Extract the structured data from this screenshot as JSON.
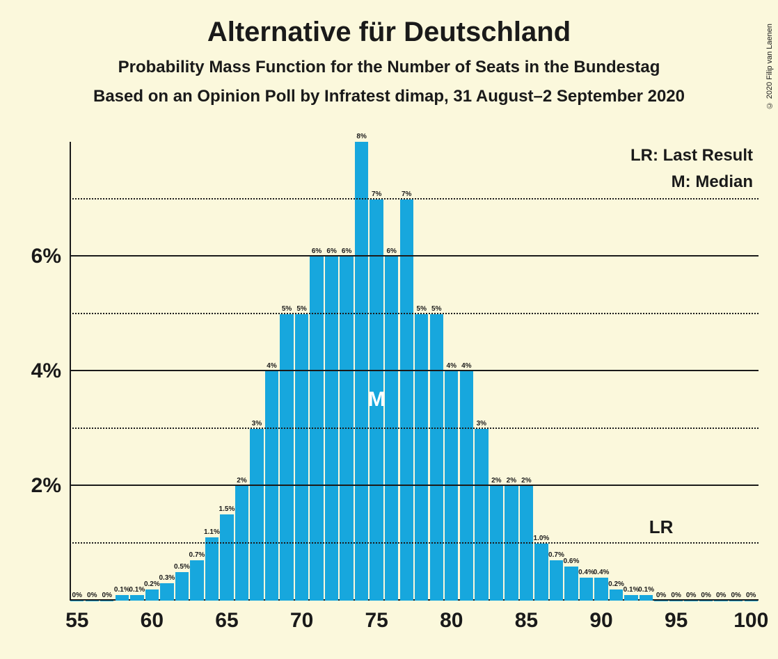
{
  "title": "Alternative für Deutschland",
  "subtitle1": "Probability Mass Function for the Number of Seats in the Bundestag",
  "subtitle2": "Based on an Opinion Poll by Infratest dimap, 31 August–2 September 2020",
  "copyright": "© 2020 Filip van Laenen",
  "legend": {
    "lr": "LR: Last Result",
    "m": "M: Median",
    "fontsize": 24
  },
  "chart": {
    "type": "bar",
    "background_color": "#fbf8dc",
    "bar_color": "#17a7dd",
    "text_color": "#1a1a1a",
    "grid_solid_color": "#1a1a1a",
    "grid_dotted_color": "#1a1a1a",
    "title_fontsize": 40,
    "subtitle_fontsize": 24,
    "axis_label_fontsize": 30,
    "bar_label_fontsize": 10,
    "x": {
      "min": 55,
      "max": 100,
      "tick_step": 5
    },
    "y": {
      "min": 0,
      "max": 8,
      "major_ticks": [
        2,
        4,
        6
      ],
      "minor_ticks": [
        1,
        3,
        5,
        7
      ]
    },
    "median_seat": 75,
    "lr_seat": 94,
    "bars": [
      {
        "seat": 55,
        "pct": 0,
        "label": "0%"
      },
      {
        "seat": 56,
        "pct": 0,
        "label": "0%"
      },
      {
        "seat": 57,
        "pct": 0,
        "label": "0%"
      },
      {
        "seat": 58,
        "pct": 0.1,
        "label": "0.1%"
      },
      {
        "seat": 59,
        "pct": 0.1,
        "label": "0.1%"
      },
      {
        "seat": 60,
        "pct": 0.2,
        "label": "0.2%"
      },
      {
        "seat": 61,
        "pct": 0.3,
        "label": "0.3%"
      },
      {
        "seat": 62,
        "pct": 0.5,
        "label": "0.5%"
      },
      {
        "seat": 63,
        "pct": 0.7,
        "label": "0.7%"
      },
      {
        "seat": 64,
        "pct": 1.1,
        "label": "1.1%"
      },
      {
        "seat": 65,
        "pct": 1.5,
        "label": "1.5%"
      },
      {
        "seat": 66,
        "pct": 2,
        "label": "2%"
      },
      {
        "seat": 67,
        "pct": 3,
        "label": "3%"
      },
      {
        "seat": 68,
        "pct": 4,
        "label": "4%"
      },
      {
        "seat": 69,
        "pct": 5,
        "label": "5%"
      },
      {
        "seat": 70,
        "pct": 5,
        "label": "5%"
      },
      {
        "seat": 71,
        "pct": 6,
        "label": "6%"
      },
      {
        "seat": 72,
        "pct": 6,
        "label": "6%"
      },
      {
        "seat": 73,
        "pct": 6,
        "label": "6%"
      },
      {
        "seat": 74,
        "pct": 8,
        "label": "8%"
      },
      {
        "seat": 75,
        "pct": 7,
        "label": "7%"
      },
      {
        "seat": 76,
        "pct": 6,
        "label": "6%"
      },
      {
        "seat": 77,
        "pct": 7,
        "label": "7%"
      },
      {
        "seat": 78,
        "pct": 5,
        "label": "5%"
      },
      {
        "seat": 79,
        "pct": 5,
        "label": "5%"
      },
      {
        "seat": 80,
        "pct": 4,
        "label": "4%"
      },
      {
        "seat": 81,
        "pct": 4,
        "label": "4%"
      },
      {
        "seat": 82,
        "pct": 3,
        "label": "3%"
      },
      {
        "seat": 83,
        "pct": 2,
        "label": "2%"
      },
      {
        "seat": 84,
        "pct": 2,
        "label": "2%"
      },
      {
        "seat": 85,
        "pct": 2,
        "label": "2%"
      },
      {
        "seat": 86,
        "pct": 1.0,
        "label": "1.0%"
      },
      {
        "seat": 87,
        "pct": 0.7,
        "label": "0.7%"
      },
      {
        "seat": 88,
        "pct": 0.6,
        "label": "0.6%"
      },
      {
        "seat": 89,
        "pct": 0.4,
        "label": "0.4%"
      },
      {
        "seat": 90,
        "pct": 0.4,
        "label": "0.4%"
      },
      {
        "seat": 91,
        "pct": 0.2,
        "label": "0.2%"
      },
      {
        "seat": 92,
        "pct": 0.1,
        "label": "0.1%"
      },
      {
        "seat": 93,
        "pct": 0.1,
        "label": "0.1%"
      },
      {
        "seat": 94,
        "pct": 0,
        "label": "0%"
      },
      {
        "seat": 95,
        "pct": 0,
        "label": "0%"
      },
      {
        "seat": 96,
        "pct": 0,
        "label": "0%"
      },
      {
        "seat": 97,
        "pct": 0,
        "label": "0%"
      },
      {
        "seat": 98,
        "pct": 0,
        "label": "0%"
      },
      {
        "seat": 99,
        "pct": 0,
        "label": "0%"
      },
      {
        "seat": 100,
        "pct": 0,
        "label": "0%"
      }
    ]
  }
}
